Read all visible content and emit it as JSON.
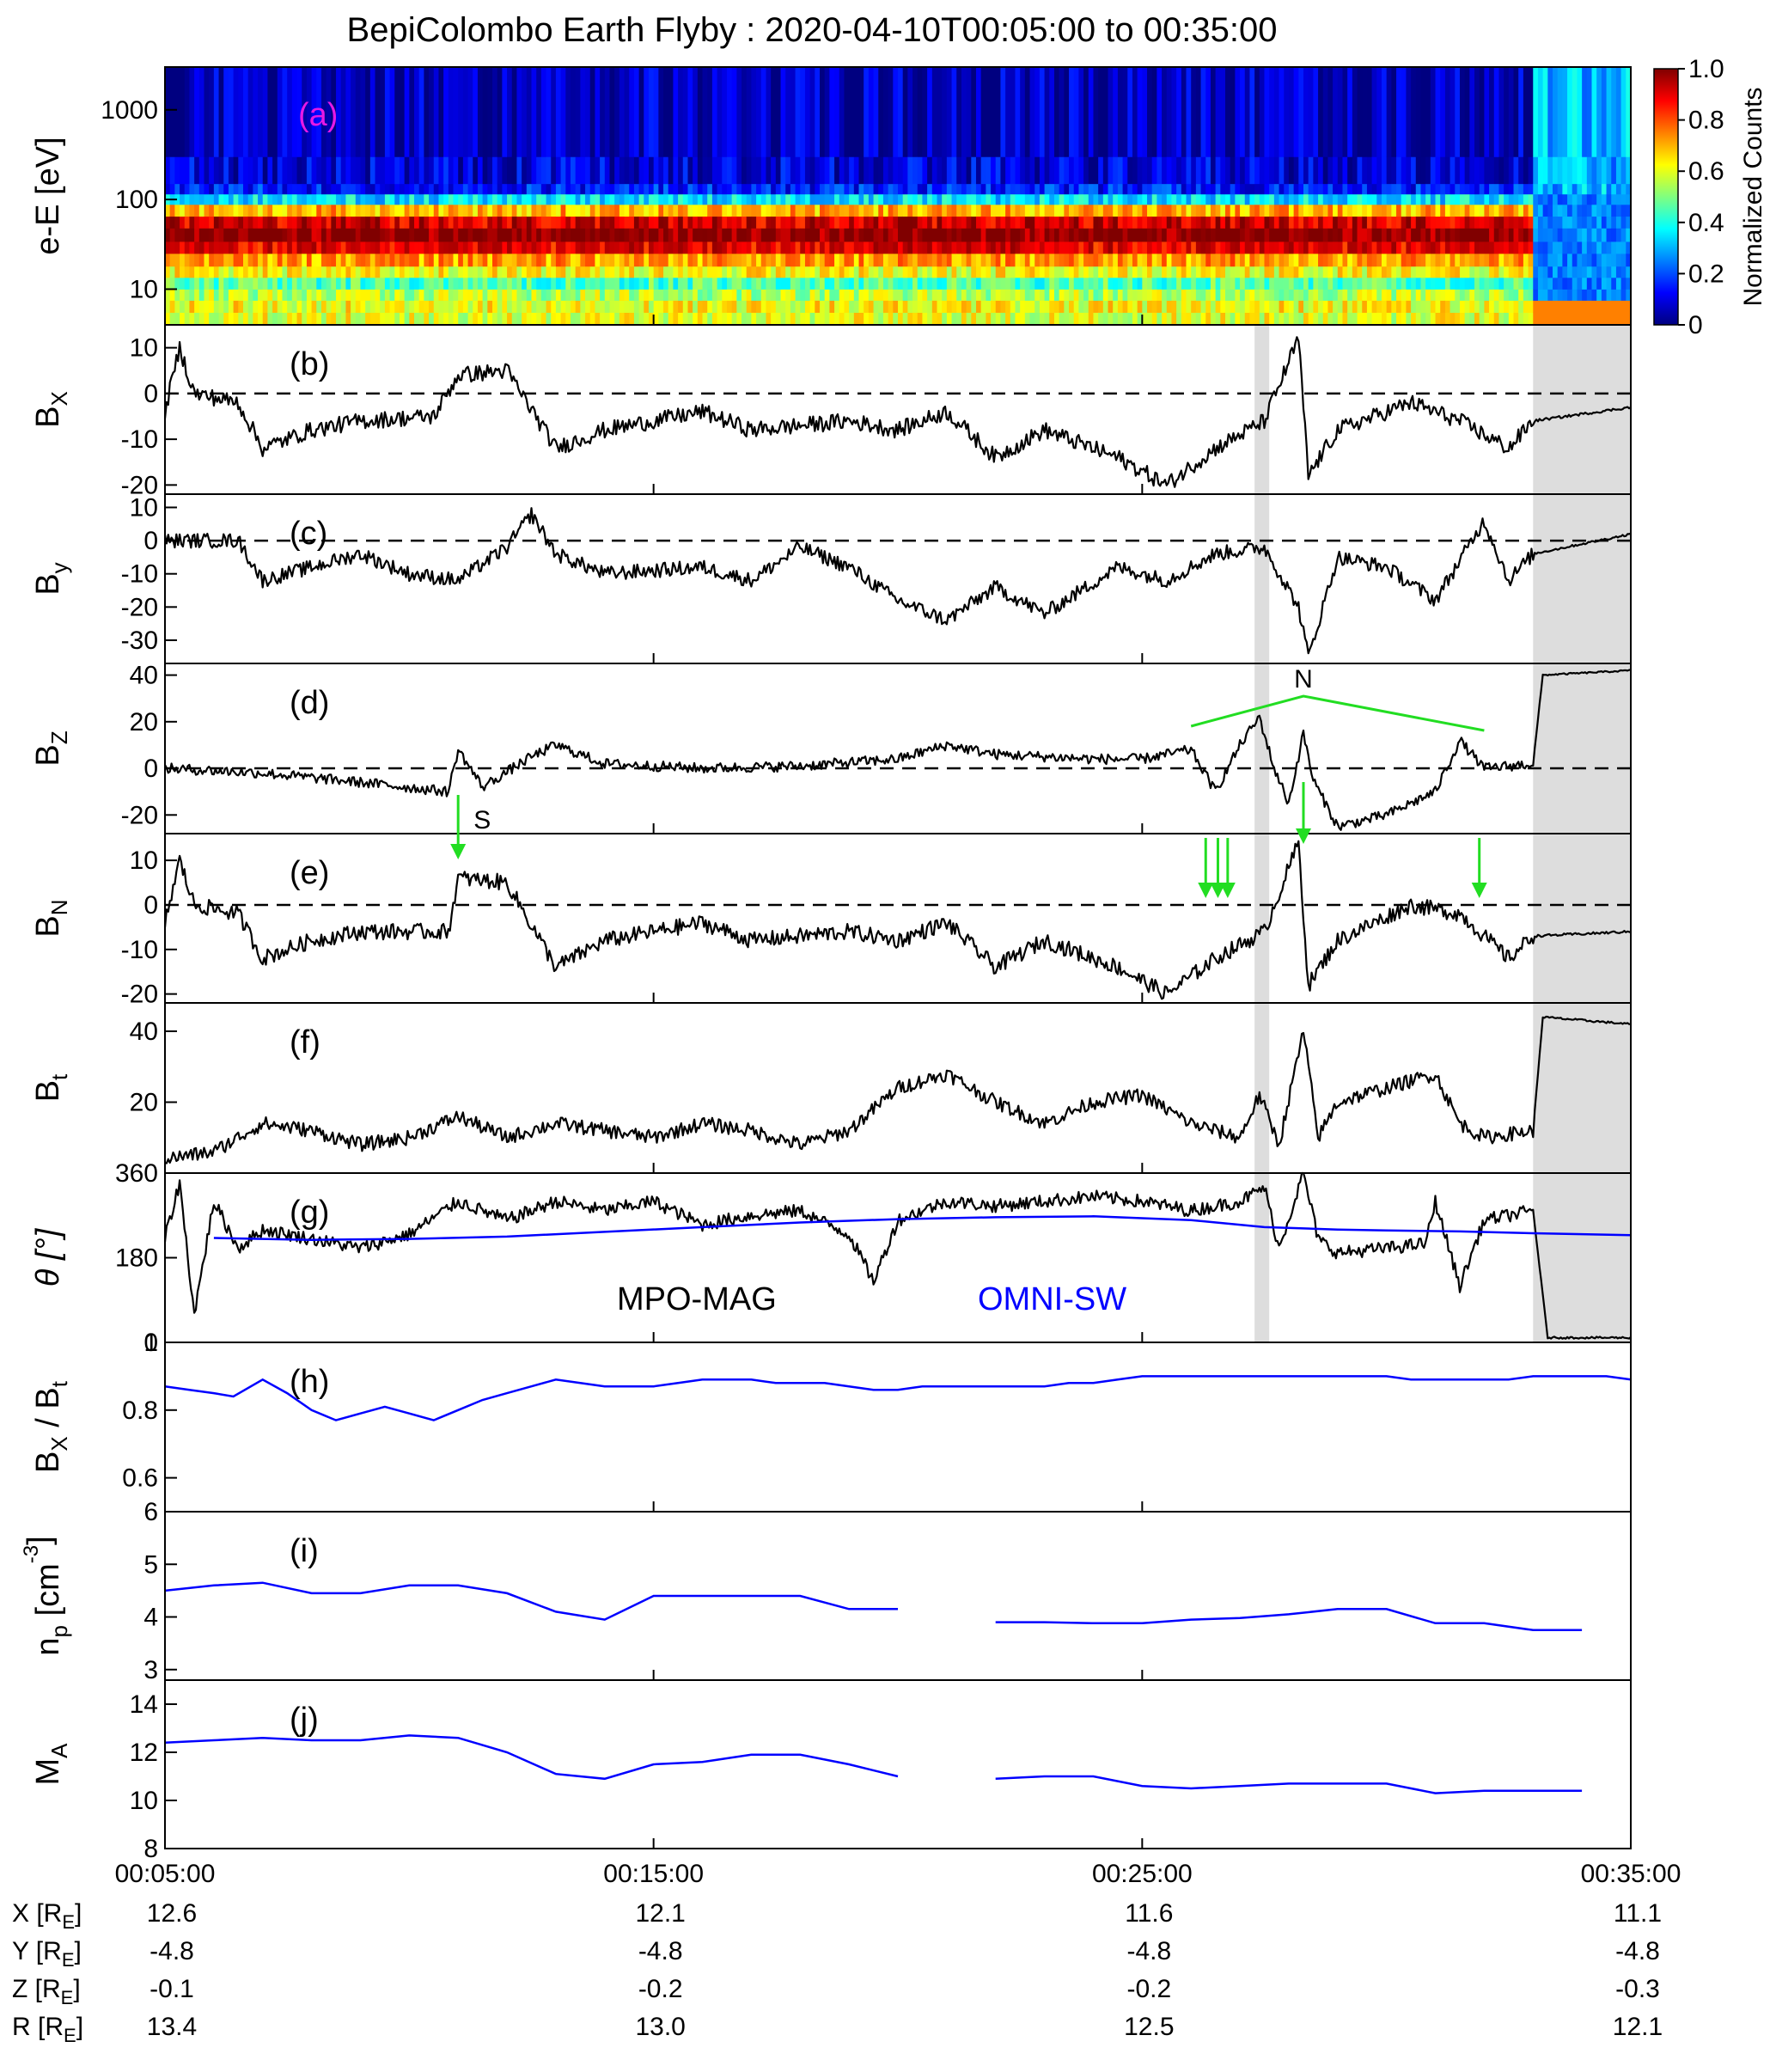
{
  "title": "BepiColombo Earth Flyby : 2020-04-10T00:05:00 to 00:35:00",
  "colors": {
    "sw_line": "#0000ff",
    "arrow": "#22dd22",
    "panel_a_label": "#e619e6",
    "shade": "#d9d9d9",
    "trace": "#000000"
  },
  "time_axis": {
    "range_min": [
      5,
      35
    ],
    "ticks": [
      "00:05:00",
      "00:15:00",
      "00:25:00",
      "00:35:00"
    ],
    "tick_minutes": [
      5,
      15,
      25,
      35
    ]
  },
  "shading": [
    {
      "start_min": 27.3,
      "end_min": 27.6
    },
    {
      "start_min": 33.0,
      "end_min": 35.0
    }
  ],
  "colorbar": {
    "label": "Normalized Counts",
    "ticks": [
      "0",
      "0.2",
      "0.4",
      "0.6",
      "0.8",
      "1.0"
    ]
  },
  "legend_g": {
    "mag": "MPO-MAG",
    "sw": "OMNI-SW"
  },
  "annotations": {
    "S": "S",
    "N": "N"
  },
  "arrows_e_min": [
    11.0,
    26.3,
    26.55,
    26.75,
    28.3,
    31.9
  ],
  "arrow_d_min": 11.0,
  "arrow_n_min": 28.3,
  "panels": [
    {
      "id": "a",
      "tag": "(a)",
      "ylabel": "e-E [eV]",
      "ylim": [
        4,
        3000
      ],
      "log": true,
      "ticks": [
        10,
        100,
        1000
      ],
      "tick_labels": [
        "10",
        "100",
        "1000"
      ]
    },
    {
      "id": "b",
      "tag": "(b)",
      "ylabel": "B",
      "sub": "X",
      "ylim": [
        -22,
        15
      ],
      "log": false,
      "ticks": [
        -20,
        -10,
        0,
        10
      ],
      "tick_labels": [
        "-20",
        "-10",
        "0",
        "10"
      ],
      "zero_line": true
    },
    {
      "id": "c",
      "tag": "(c)",
      "ylabel": "B",
      "sub": "y",
      "ylim": [
        -37,
        14
      ],
      "log": false,
      "ticks": [
        -30,
        -20,
        -10,
        0,
        10
      ],
      "tick_labels": [
        "-30",
        "-20",
        "-10",
        "0",
        "10"
      ],
      "zero_line": true
    },
    {
      "id": "d",
      "tag": "(d)",
      "ylabel": "B",
      "sub": "Z",
      "ylim": [
        -28,
        45
      ],
      "log": false,
      "ticks": [
        -20,
        0,
        20,
        40
      ],
      "tick_labels": [
        "-20",
        "0",
        "20",
        "40"
      ],
      "zero_line": true
    },
    {
      "id": "e",
      "tag": "(e)",
      "ylabel": "B",
      "sub": "N",
      "ylim": [
        -22,
        16
      ],
      "log": false,
      "ticks": [
        -20,
        -10,
        0,
        10
      ],
      "tick_labels": [
        "-20",
        "-10",
        "0",
        "10"
      ],
      "zero_line": true
    },
    {
      "id": "f",
      "tag": "(f)",
      "ylabel": "B",
      "sub": "t",
      "ylim": [
        0,
        48
      ],
      "log": false,
      "ticks": [
        20,
        40
      ],
      "tick_labels": [
        "20",
        "40"
      ]
    },
    {
      "id": "g",
      "tag": "(g)",
      "ylabel": "θ [°]",
      "ylim": [
        0,
        360
      ],
      "log": false,
      "ticks": [
        0,
        180,
        360
      ],
      "tick_labels": [
        "0",
        "180",
        "360"
      ]
    },
    {
      "id": "h",
      "tag": "(h)",
      "ylabel": "B",
      "sub": "X",
      "ylabel2": " / B",
      "sub2": "t",
      "ylim": [
        0.5,
        1.0
      ],
      "log": false,
      "ticks": [
        0.6,
        0.8,
        1.0
      ],
      "tick_labels": [
        "0.6",
        "0.8",
        "1"
      ]
    },
    {
      "id": "i",
      "tag": "(i)",
      "ylabel": "n",
      "sub": "p",
      "ylabel2": " [cm",
      "sup2": "-3",
      "ylabel3": "]",
      "ylim": [
        2.8,
        6
      ],
      "log": false,
      "ticks": [
        3,
        4,
        5,
        6
      ],
      "tick_labels": [
        "3",
        "4",
        "5",
        "6"
      ]
    },
    {
      "id": "j",
      "tag": "(j)",
      "ylabel": "M",
      "sub": "A",
      "ylim": [
        8,
        15
      ],
      "log": false,
      "ticks": [
        8,
        10,
        12,
        14
      ],
      "tick_labels": [
        "8",
        "10",
        "12",
        "14"
      ]
    }
  ],
  "chart_data": {
    "type": "line",
    "title": "BepiColombo Earth Flyby : 2020-04-10T00:05:00 to 00:35:00",
    "xlabel": "",
    "x_ticks": [
      "00:05:00",
      "00:15:00",
      "00:25:00",
      "00:35:00"
    ],
    "panels": [
      {
        "id": "g",
        "series": [
          {
            "name": "OMNI-SW",
            "x_min": [
              6,
              8,
              10,
              12,
              14,
              16,
              18,
              20,
              22,
              24,
              26,
              27.5,
              29,
              30,
              31.5,
              33,
              35
            ],
            "values": [
              222,
              218,
              220,
              225,
              235,
              245,
              255,
              262,
              266,
              268,
              260,
              245,
              240,
              238,
              236,
              232,
              228
            ]
          }
        ]
      },
      {
        "id": "h",
        "series": [
          {
            "x_min": [
              5,
              5.5,
              6,
              6.4,
              7,
              7.5,
              8,
              8.5,
              9,
              9.5,
              10,
              10.5,
              11,
              11.5,
              12,
              12.5,
              13,
              13.5,
              14,
              14.5,
              15,
              15.5,
              16,
              16.5,
              17,
              17.5,
              18,
              18.5,
              19,
              19.5,
              20,
              20.5,
              21,
              21.5,
              22,
              22.5,
              23,
              23.5,
              24,
              24.5,
              25,
              25.5,
              26,
              26.5,
              27,
              27.5,
              28,
              28.5,
              29,
              29.5,
              30,
              30.5,
              31,
              31.5,
              32,
              32.5,
              33,
              33.5,
              34,
              34.5,
              35
            ],
            "values": [
              0.87,
              0.86,
              0.85,
              0.84,
              0.89,
              0.85,
              0.8,
              0.77,
              0.79,
              0.81,
              0.79,
              0.77,
              0.8,
              0.83,
              0.85,
              0.87,
              0.89,
              0.88,
              0.87,
              0.87,
              0.87,
              0.88,
              0.89,
              0.89,
              0.89,
              0.88,
              0.88,
              0.88,
              0.87,
              0.86,
              0.86,
              0.87,
              0.87,
              0.87,
              0.87,
              0.87,
              0.87,
              0.88,
              0.88,
              0.89,
              0.9,
              0.9,
              0.9,
              0.9,
              0.9,
              0.9,
              0.9,
              0.9,
              0.9,
              0.9,
              0.9,
              0.89,
              0.89,
              0.89,
              0.89,
              0.89,
              0.9,
              0.9,
              0.9,
              0.9,
              0.89
            ]
          }
        ]
      },
      {
        "id": "i",
        "series": [
          {
            "x_min": [
              5,
              6,
              7,
              8,
              9,
              10,
              11,
              12,
              13,
              14,
              15,
              16,
              17,
              18,
              19,
              20
            ],
            "values": [
              4.5,
              4.6,
              4.65,
              4.45,
              4.45,
              4.6,
              4.6,
              4.45,
              4.1,
              3.95,
              4.4,
              4.4,
              4.4,
              4.4,
              4.15,
              4.15
            ]
          },
          {
            "x_min": [
              22,
              23,
              24,
              25,
              26,
              27,
              28,
              29,
              30,
              31,
              32,
              33,
              34
            ],
            "values": [
              3.9,
              3.9,
              3.88,
              3.88,
              3.95,
              3.98,
              4.05,
              4.15,
              4.15,
              3.88,
              3.88,
              3.75,
              3.75
            ]
          }
        ]
      },
      {
        "id": "j",
        "series": [
          {
            "x_min": [
              5,
              6,
              7,
              8,
              9,
              10,
              11,
              12,
              13,
              14,
              15,
              16,
              17,
              18,
              19,
              20
            ],
            "values": [
              12.4,
              12.5,
              12.6,
              12.5,
              12.5,
              12.7,
              12.6,
              12.0,
              11.1,
              10.9,
              11.5,
              11.6,
              11.9,
              11.9,
              11.5,
              11.0
            ]
          },
          {
            "x_min": [
              22,
              23,
              24,
              25,
              26,
              27,
              28,
              29,
              30,
              31,
              32,
              33,
              34
            ],
            "values": [
              10.9,
              11.0,
              11.0,
              10.6,
              10.5,
              10.6,
              10.7,
              10.7,
              10.7,
              10.3,
              10.4,
              10.4,
              10.4
            ]
          }
        ]
      }
    ]
  },
  "orbit": {
    "rows": [
      {
        "label": "X [R",
        "sub": "E",
        "tail": "]",
        "values": [
          "12.6",
          "12.1",
          "11.6",
          "11.1"
        ]
      },
      {
        "label": "Y [R",
        "sub": "E",
        "tail": "]",
        "values": [
          "-4.8",
          "-4.8",
          "-4.8",
          "-4.8"
        ]
      },
      {
        "label": "Z [R",
        "sub": "E",
        "tail": "]",
        "values": [
          "-0.1",
          "-0.2",
          "-0.2",
          "-0.3"
        ]
      },
      {
        "label": "R [R",
        "sub": "E",
        "tail": "]",
        "values": [
          "13.4",
          "13.0",
          "12.5",
          "12.1"
        ]
      }
    ]
  }
}
